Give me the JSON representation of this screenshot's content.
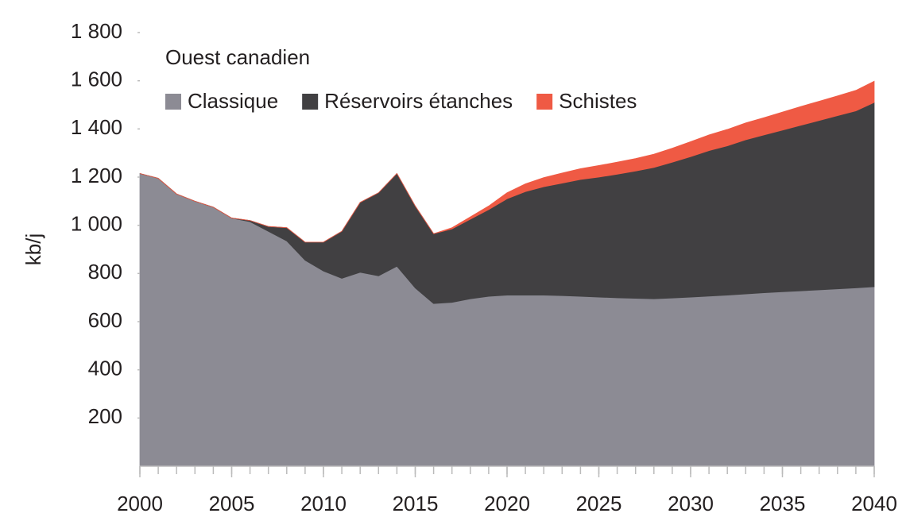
{
  "chart_data": {
    "type": "stacked_area",
    "subtitle": "Ouest canadien",
    "y_label": "kb/j",
    "x": [
      2000,
      2001,
      2002,
      2003,
      2004,
      2005,
      2006,
      2007,
      2008,
      2009,
      2010,
      2011,
      2012,
      2013,
      2014,
      2015,
      2016,
      2017,
      2018,
      2019,
      2020,
      2021,
      2022,
      2023,
      2024,
      2025,
      2026,
      2027,
      2028,
      2029,
      2030,
      2031,
      2032,
      2033,
      2034,
      2035,
      2036,
      2037,
      2038,
      2039,
      2040
    ],
    "series": [
      {
        "name": "Classique",
        "color": "#8c8b94",
        "values": [
          1215,
          1195,
          1130,
          1100,
          1075,
          1030,
          1015,
          975,
          935,
          855,
          810,
          780,
          805,
          790,
          830,
          740,
          675,
          680,
          695,
          705,
          710,
          710,
          710,
          708,
          705,
          702,
          699,
          697,
          695,
          698,
          702,
          706,
          710,
          715,
          720,
          724,
          728,
          732,
          736,
          740,
          745
        ]
      },
      {
        "name": "Réservoirs étanches",
        "color": "#414042",
        "values": [
          0,
          0,
          0,
          0,
          0,
          0,
          5,
          20,
          55,
          75,
          120,
          195,
          290,
          345,
          385,
          340,
          290,
          305,
          330,
          360,
          400,
          430,
          450,
          467,
          485,
          498,
          513,
          528,
          545,
          564,
          583,
          604,
          620,
          640,
          655,
          671,
          687,
          703,
          719,
          735,
          765
        ]
      },
      {
        "name": "Schistes",
        "color": "#ef5a44",
        "values": [
          0,
          0,
          0,
          0,
          0,
          0,
          0,
          0,
          0,
          0,
          0,
          0,
          0,
          0,
          0,
          0,
          0,
          5,
          10,
          15,
          25,
          32,
          38,
          42,
          45,
          48,
          50,
          52,
          55,
          58,
          62,
          65,
          68,
          70,
          72,
          75,
          78,
          80,
          82,
          85,
          88
        ]
      }
    ],
    "xlim": [
      2000,
      2040
    ],
    "xticks": [
      2000,
      2005,
      2010,
      2015,
      2020,
      2025,
      2030,
      2035,
      2040
    ],
    "ylim": [
      0,
      1800
    ],
    "yticks": [
      200,
      400,
      600,
      800,
      {
        "value": 1000,
        "label": "1 000"
      },
      {
        "value": 1200,
        "label": "1 200"
      },
      {
        "value": 1400,
        "label": "1 400"
      },
      {
        "value": 1600,
        "label": "1 600"
      },
      {
        "value": 1800,
        "label": "1 800"
      }
    ]
  }
}
